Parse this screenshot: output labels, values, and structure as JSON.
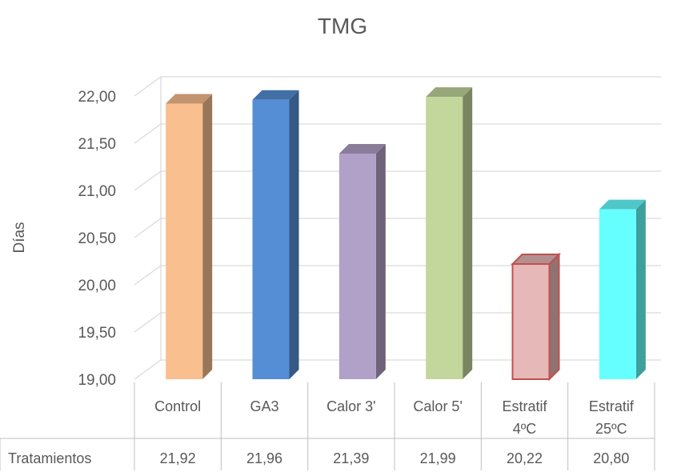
{
  "chart_data": {
    "type": "bar",
    "title": "TMG",
    "ylabel": "Días",
    "xlabel": "",
    "ylim": [
      19.0,
      22.0
    ],
    "y_ticks": [
      "19,00",
      "19,50",
      "20,00",
      "20,50",
      "21,00",
      "21,50",
      "22,00"
    ],
    "y_tick_values": [
      19.0,
      19.5,
      20.0,
      20.5,
      21.0,
      21.5,
      22.0
    ],
    "categories": [
      [
        "Control"
      ],
      [
        "GA3"
      ],
      [
        "Calor 3'"
      ],
      [
        "Calor 5'"
      ],
      [
        "Estratif",
        "4ºC"
      ],
      [
        "Estratif",
        "25ºC"
      ]
    ],
    "series": [
      {
        "name": "Tratamientos",
        "values": [
          21.92,
          21.96,
          21.39,
          21.99,
          20.22,
          20.8
        ],
        "value_labels": [
          "21,92",
          "21,96",
          "21,39",
          "21,99",
          "20,22",
          "20,80"
        ]
      }
    ],
    "bar_colors": [
      "#F9BF8F",
      "#558ED5",
      "#B1A0C7",
      "#C3D69B",
      "#E6B9B8",
      "#66FFFF"
    ],
    "grid": true,
    "style": "3d-column",
    "data_table": true
  }
}
